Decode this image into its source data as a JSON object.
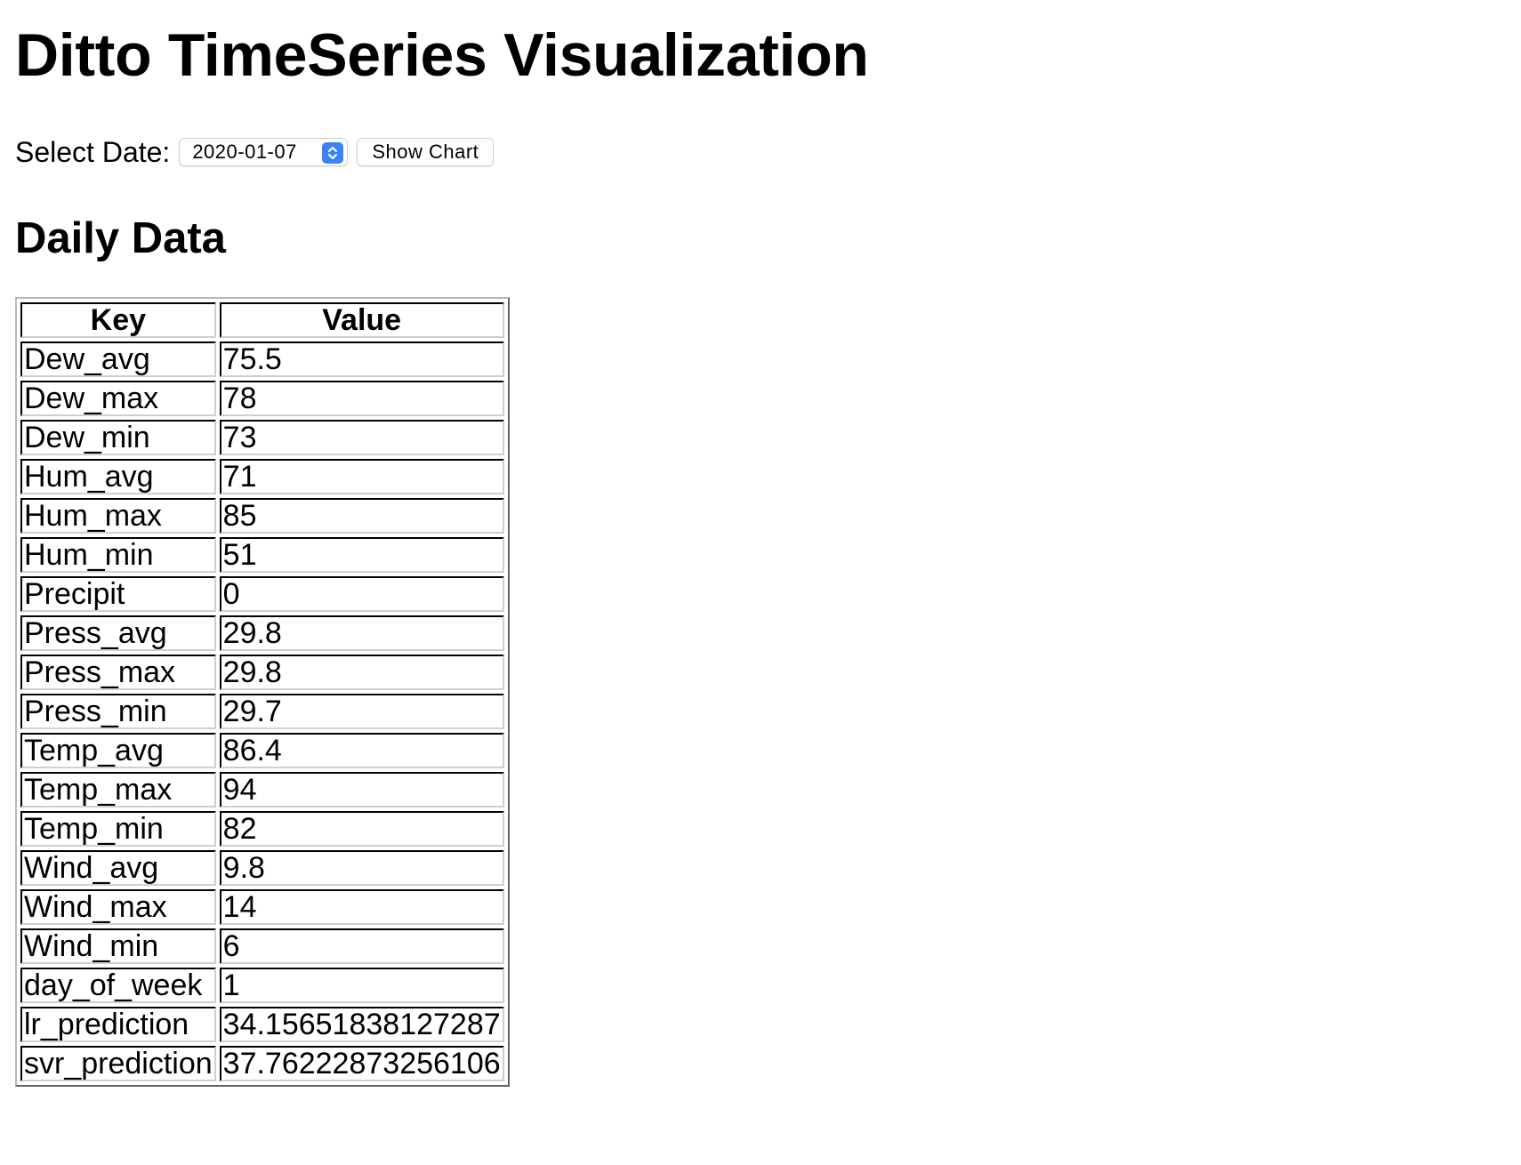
{
  "page": {
    "title": "Ditto TimeSeries Visualization",
    "select_label": "Select Date:",
    "selected_date": "2020-01-07",
    "show_chart_label": "Show Chart",
    "section_title": "Daily Data"
  },
  "table": {
    "headers": [
      "Key",
      "Value"
    ],
    "rows": [
      [
        "Dew_avg",
        "75.5"
      ],
      [
        "Dew_max",
        "78"
      ],
      [
        "Dew_min",
        "73"
      ],
      [
        "Hum_avg",
        "71"
      ],
      [
        "Hum_max",
        "85"
      ],
      [
        "Hum_min",
        "51"
      ],
      [
        "Precipit",
        "0"
      ],
      [
        "Press_avg",
        "29.8"
      ],
      [
        "Press_max",
        "29.8"
      ],
      [
        "Press_min",
        "29.7"
      ],
      [
        "Temp_avg",
        "86.4"
      ],
      [
        "Temp_max",
        "94"
      ],
      [
        "Temp_min",
        "82"
      ],
      [
        "Wind_avg",
        "9.8"
      ],
      [
        "Wind_max",
        "14"
      ],
      [
        "Wind_min",
        "6"
      ],
      [
        "day_of_week",
        "1"
      ],
      [
        "lr_prediction",
        "34.15651838127287"
      ],
      [
        "svr_prediction",
        "37.76222873256106"
      ]
    ]
  },
  "colors": {
    "stepper_accent": "#3b82f6"
  },
  "icons": {
    "date_stepper": "chevron-up-down-icon"
  }
}
